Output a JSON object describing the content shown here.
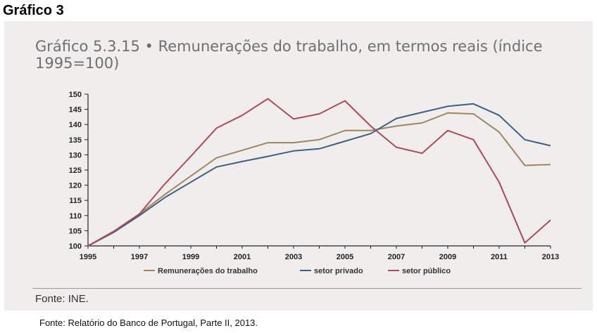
{
  "heading": "Gráfico 3",
  "source_note": "Fonte: INE.",
  "caption": "Fonte: Relatório do Banco de Portugal, Parte II, 2013.",
  "chart_data": {
    "type": "line",
    "title": "Gráfico 5.3.15  •   Remunerações do trabalho, em termos reais (índice 1995=100)",
    "xlabel": "",
    "ylabel": "",
    "x": [
      1995,
      1996,
      1997,
      1998,
      1999,
      2000,
      2001,
      2002,
      2003,
      2004,
      2005,
      2006,
      2007,
      2008,
      2009,
      2010,
      2011,
      2012,
      2013
    ],
    "xticks": [
      "1995",
      "1997",
      "1999",
      "2001",
      "2003",
      "2005",
      "2007",
      "2009",
      "2011",
      "2013"
    ],
    "yticks": [
      "100",
      "105",
      "110",
      "115",
      "120",
      "125",
      "130",
      "135",
      "140",
      "145",
      "150"
    ],
    "ylim": [
      100,
      150
    ],
    "xlim": [
      1995,
      2013
    ],
    "grid": false,
    "legend_position": "bottom",
    "series": [
      {
        "name": "Remunerações do trabalho",
        "color": "#a0865c",
        "values": [
          100,
          104.5,
          110.5,
          117,
          123,
          129,
          131.5,
          134,
          134,
          135,
          138,
          138,
          139.5,
          140.5,
          143.8,
          143.5,
          137.5,
          126.5,
          126.8
        ]
      },
      {
        "name": "setor privado",
        "color": "#3f5f7e",
        "values": [
          100,
          104.5,
          110,
          116,
          121,
          126,
          127.8,
          129.5,
          131.3,
          132,
          134.5,
          137,
          142,
          144,
          146,
          146.8,
          143,
          135,
          133
        ]
      },
      {
        "name": "setor público",
        "color": "#b0495a",
        "values": [
          100,
          104.8,
          110.5,
          120.5,
          129.5,
          138.8,
          143,
          148.5,
          141.8,
          143.5,
          147.8,
          139.5,
          132.5,
          130.5,
          138,
          135,
          121,
          101,
          108.5
        ]
      }
    ]
  }
}
